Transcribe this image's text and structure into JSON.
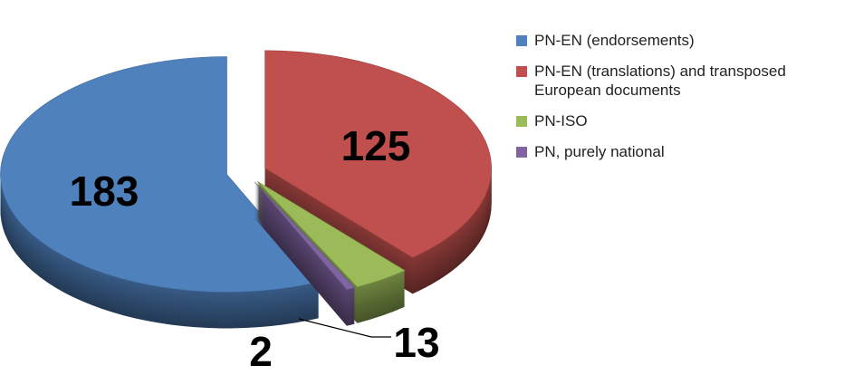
{
  "chart_data": {
    "type": "pie",
    "series": [
      {
        "name": "PN-EN (endorsements)",
        "color": "#4f81bd",
        "values": [
          183
        ]
      },
      {
        "name": "PN-EN (translations) and transposed European documents",
        "color": "#c0504d",
        "values": [
          125
        ]
      },
      {
        "name": "PN-ISO",
        "color": "#9bbb59",
        "values": [
          13
        ]
      },
      {
        "name": "PN, purely national",
        "color": "#8064a2",
        "values": [
          2
        ]
      }
    ],
    "legend": "right"
  }
}
